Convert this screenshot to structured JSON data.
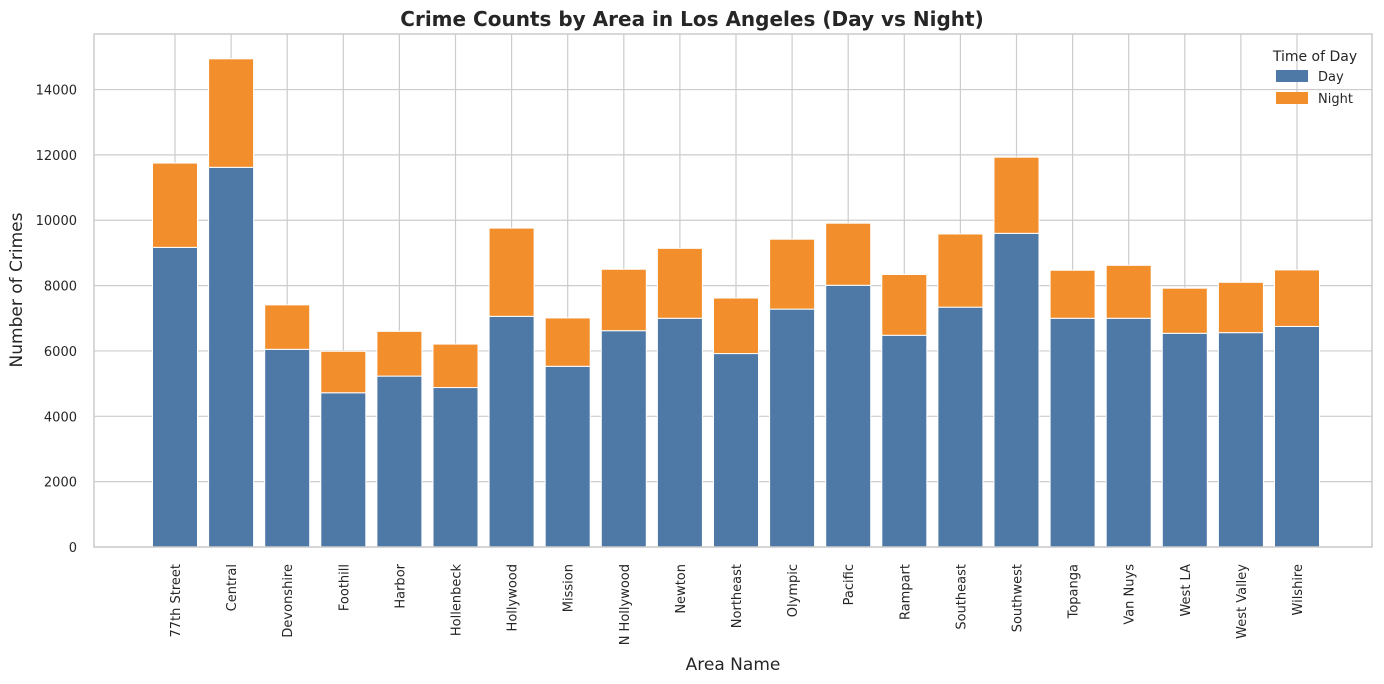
{
  "chart_data": {
    "type": "bar",
    "stacked": true,
    "title": "Crime Counts by Area in Los Angeles (Day vs Night)",
    "xlabel": "Area Name",
    "ylabel": "Number of Crimes",
    "ylim": [
      0,
      15700
    ],
    "yticks": [
      0,
      2000,
      4000,
      6000,
      8000,
      10000,
      12000,
      14000
    ],
    "grid": true,
    "legend": {
      "title": "Time of Day",
      "placement": "top-right"
    },
    "categories": [
      "77th Street",
      "Central",
      "Devonshire",
      "Foothill",
      "Harbor",
      "Hollenbeck",
      "Hollywood",
      "Mission",
      "N Hollywood",
      "Newton",
      "Northeast",
      "Olympic",
      "Pacific",
      "Rampart",
      "Southeast",
      "Southwest",
      "Topanga",
      "Van Nuys",
      "West LA",
      "West Valley",
      "Wilshire"
    ],
    "series": [
      {
        "name": "Day",
        "color": "#4e79a7",
        "values": [
          9170,
          11620,
          6050,
          4720,
          5230,
          4880,
          7060,
          5530,
          6620,
          7000,
          5920,
          7280,
          8010,
          6480,
          7340,
          9600,
          7000,
          7000,
          6540,
          6560,
          6750
        ]
      },
      {
        "name": "Night",
        "color": "#f28e2b",
        "values": [
          2580,
          3320,
          1360,
          1270,
          1370,
          1330,
          2700,
          1480,
          1880,
          2140,
          1700,
          2140,
          1900,
          1860,
          2240,
          2330,
          1470,
          1620,
          1380,
          1540,
          1730
        ]
      }
    ]
  }
}
